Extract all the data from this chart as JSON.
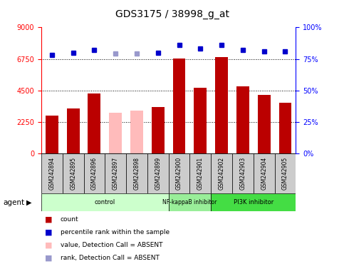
{
  "title": "GDS3175 / 38998_g_at",
  "samples": [
    "GSM242894",
    "GSM242895",
    "GSM242896",
    "GSM242897",
    "GSM242898",
    "GSM242899",
    "GSM242900",
    "GSM242901",
    "GSM242902",
    "GSM242903",
    "GSM242904",
    "GSM242905"
  ],
  "bar_values": [
    2700,
    3200,
    4300,
    2900,
    3050,
    3300,
    6800,
    4700,
    6900,
    4800,
    4200,
    3600
  ],
  "bar_colors": [
    "#bb0000",
    "#bb0000",
    "#bb0000",
    "#ffbbbb",
    "#ffbbbb",
    "#bb0000",
    "#bb0000",
    "#bb0000",
    "#bb0000",
    "#bb0000",
    "#bb0000",
    "#bb0000"
  ],
  "dot_values": [
    78,
    80,
    82,
    79,
    79,
    80,
    86,
    83,
    86,
    82,
    81,
    81
  ],
  "dot_colors": [
    "#0000cc",
    "#0000cc",
    "#0000cc",
    "#9999cc",
    "#9999cc",
    "#0000cc",
    "#0000cc",
    "#0000cc",
    "#0000cc",
    "#0000cc",
    "#0000cc",
    "#0000cc"
  ],
  "ylim_left": [
    0,
    9000
  ],
  "ylim_right": [
    0,
    100
  ],
  "yticks_left": [
    0,
    2250,
    4500,
    6750,
    9000
  ],
  "yticks_right": [
    0,
    25,
    50,
    75,
    100
  ],
  "ytick_labels_left": [
    "0",
    "2250",
    "4500",
    "6750",
    "9000"
  ],
  "ytick_labels_right": [
    "0%",
    "25%",
    "50%",
    "75%",
    "100%"
  ],
  "hgrid_values": [
    2250,
    4500,
    6750
  ],
  "groups": [
    {
      "label": "control",
      "start": 0,
      "end": 6,
      "color": "#ccffcc"
    },
    {
      "label": "NF-kappaB inhibitor",
      "start": 6,
      "end": 8,
      "color": "#99ee99"
    },
    {
      "label": "PI3K inhibitor",
      "start": 8,
      "end": 12,
      "color": "#44dd44"
    }
  ],
  "agent_label": "agent",
  "legend_items": [
    {
      "color": "#bb0000",
      "label": "count",
      "marker": "s"
    },
    {
      "color": "#0000cc",
      "label": "percentile rank within the sample",
      "marker": "s"
    },
    {
      "color": "#ffbbbb",
      "label": "value, Detection Call = ABSENT",
      "marker": "s"
    },
    {
      "color": "#9999cc",
      "label": "rank, Detection Call = ABSENT",
      "marker": "s"
    }
  ],
  "sample_bg_color": "#cccccc",
  "bar_width": 0.6,
  "fig_width": 4.83,
  "fig_height": 3.84,
  "dpi": 100
}
